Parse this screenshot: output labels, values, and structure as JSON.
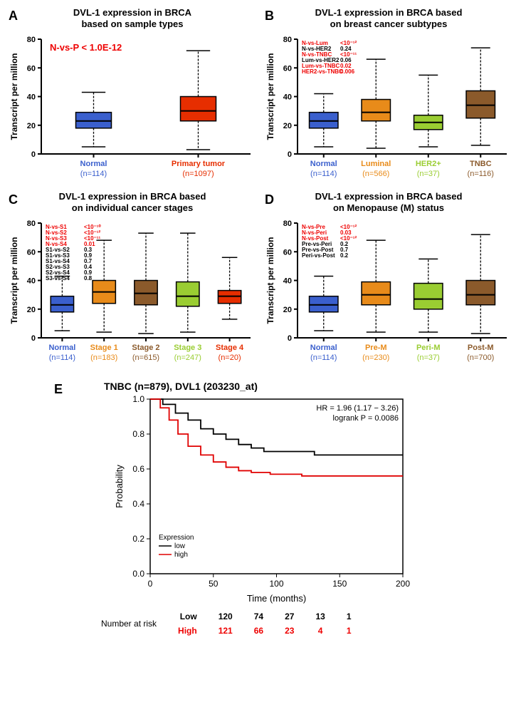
{
  "panelA": {
    "label": "A",
    "title_l1": "DVL-1 expression in BRCA",
    "title_l2": "based on sample types",
    "ylabel": "Transcript per million",
    "yticks": [
      0,
      20,
      40,
      60,
      80
    ],
    "ylim": [
      0,
      80
    ],
    "pval_text": "N-vs-P < 1.0E-12",
    "categories": [
      {
        "name": "Normal",
        "n": "(n=114)",
        "color": "#3a5fcd",
        "q1": 18,
        "median": 23,
        "q3": 29,
        "wlo": 5,
        "whi": 43
      },
      {
        "name": "Primary tumor",
        "n": "(n=1097)",
        "color": "#e62e00",
        "q1": 23,
        "median": 30,
        "q3": 40,
        "wlo": 3,
        "whi": 72
      }
    ]
  },
  "panelB": {
    "label": "B",
    "title_l1": "DVL-1 expression in BRCA based",
    "title_l2": "on breast cancer subtypes",
    "ylabel": "Transcript per million",
    "yticks": [
      0,
      20,
      40,
      60,
      80
    ],
    "ylim": [
      0,
      80
    ],
    "pvals": [
      {
        "t": "N-vs-Lum",
        "v": "<10⁻¹²",
        "red": true
      },
      {
        "t": "N-vs-HER2",
        "v": "0.24",
        "red": false
      },
      {
        "t": "N-vs-TNBC",
        "v": "<10⁻¹¹",
        "red": true
      },
      {
        "t": "Lum-vs-HER2",
        "v": "0.06",
        "red": false
      },
      {
        "t": "Lum-vs-TNBC",
        "v": "0.02",
        "red": true
      },
      {
        "t": "HER2-vs-TNBC",
        "v": "0.006",
        "red": true
      }
    ],
    "categories": [
      {
        "name": "Normal",
        "n": "(n=114)",
        "color": "#3a5fcd",
        "q1": 18,
        "median": 23,
        "q3": 29,
        "wlo": 5,
        "whi": 42
      },
      {
        "name": "Luminal",
        "n": "(n=566)",
        "color": "#e88b1a",
        "q1": 23,
        "median": 29,
        "q3": 38,
        "wlo": 4,
        "whi": 66
      },
      {
        "name": "HER2+",
        "n": "(n=37)",
        "color": "#9acd32",
        "q1": 17,
        "median": 22,
        "q3": 27,
        "wlo": 5,
        "whi": 55
      },
      {
        "name": "TNBC",
        "n": "(n=116)",
        "color": "#8b5a2b",
        "q1": 25,
        "median": 34,
        "q3": 44,
        "wlo": 6,
        "whi": 74
      }
    ]
  },
  "panelC": {
    "label": "C",
    "title_l1": "DVL-1 expression in BRCA based",
    "title_l2": "on individual cancer stages",
    "ylabel": "Transcript per million",
    "yticks": [
      0,
      20,
      40,
      60,
      80
    ],
    "ylim": [
      0,
      80
    ],
    "pvals": [
      {
        "t": "N-vs-S1",
        "v": "<10⁻¹⁰",
        "red": true
      },
      {
        "t": "N-vs-S2",
        "v": "<10⁻¹²",
        "red": true
      },
      {
        "t": "N-vs-S3",
        "v": "<10⁻¹¹",
        "red": true
      },
      {
        "t": "N-vs-S4",
        "v": "0.01",
        "red": true
      },
      {
        "t": "S1-vs-S2",
        "v": "0.3",
        "red": false
      },
      {
        "t": "S1-vs-S3",
        "v": "0.9",
        "red": false
      },
      {
        "t": "S1-vs-S4",
        "v": "0.7",
        "red": false
      },
      {
        "t": "S2-vs-S3",
        "v": "0.4",
        "red": false
      },
      {
        "t": "S2-vs-S4",
        "v": "0.9",
        "red": false
      },
      {
        "t": "S3-vs-S4",
        "v": "0.8",
        "red": false
      }
    ],
    "categories": [
      {
        "name": "Normal",
        "n": "(n=114)",
        "color": "#3a5fcd",
        "q1": 18,
        "median": 23,
        "q3": 29,
        "wlo": 5,
        "whi": 43
      },
      {
        "name": "Stage 1",
        "n": "(n=183)",
        "color": "#e88b1a",
        "q1": 24,
        "median": 32,
        "q3": 40,
        "wlo": 4,
        "whi": 68
      },
      {
        "name": "Stage 2",
        "n": "(n=615)",
        "color": "#8b5a2b",
        "q1": 23,
        "median": 31,
        "q3": 40,
        "wlo": 3,
        "whi": 73
      },
      {
        "name": "Stage 3",
        "n": "(n=247)",
        "color": "#9acd32",
        "q1": 22,
        "median": 29,
        "q3": 39,
        "wlo": 4,
        "whi": 73
      },
      {
        "name": "Stage 4",
        "n": "(n=20)",
        "color": "#e62e00",
        "q1": 24,
        "median": 29,
        "q3": 33,
        "wlo": 13,
        "whi": 56
      }
    ]
  },
  "panelD": {
    "label": "D",
    "title_l1": "DVL-1 expression in BRCA based",
    "title_l2": "on Menopause (M) status",
    "ylabel": "Transcript per million",
    "yticks": [
      0,
      20,
      40,
      60,
      80
    ],
    "ylim": [
      0,
      80
    ],
    "pvals": [
      {
        "t": "N-vs-Pre",
        "v": "<10⁻¹²",
        "red": true
      },
      {
        "t": "N-vs-Peri",
        "v": "0.03",
        "red": true
      },
      {
        "t": "N-vs-Post",
        "v": "<10⁻¹²",
        "red": true
      },
      {
        "t": "Pre-vs-Peri",
        "v": "0.2",
        "red": false
      },
      {
        "t": "Pre-vs-Post",
        "v": "0.7",
        "red": false
      },
      {
        "t": "Peri-vs-Post",
        "v": "0.2",
        "red": false
      }
    ],
    "categories": [
      {
        "name": "Normal",
        "n": "(n=114)",
        "color": "#3a5fcd",
        "q1": 18,
        "median": 23,
        "q3": 29,
        "wlo": 5,
        "whi": 43
      },
      {
        "name": "Pre-M",
        "n": "(n=230)",
        "color": "#e88b1a",
        "q1": 23,
        "median": 30,
        "q3": 39,
        "wlo": 4,
        "whi": 68
      },
      {
        "name": "Peri-M",
        "n": "(n=37)",
        "color": "#9acd32",
        "q1": 20,
        "median": 27,
        "q3": 38,
        "wlo": 4,
        "whi": 55
      },
      {
        "name": "Post-M",
        "n": "(n=700)",
        "color": "#8b5a2b",
        "q1": 23,
        "median": 30,
        "q3": 40,
        "wlo": 3,
        "whi": 72
      }
    ]
  },
  "panelE": {
    "label": "E",
    "title": "TNBC (n=879), DVL1 (203230_at)",
    "xlabel": "Time (months)",
    "ylabel": "Probability",
    "xlim": [
      0,
      200
    ],
    "xticks": [
      0,
      50,
      100,
      150,
      200
    ],
    "ylim": [
      0,
      1
    ],
    "yticks": [
      0,
      0.2,
      0.4,
      0.6,
      0.8,
      1.0
    ],
    "hr_text": "HR = 1.96 (1.17 − 3.26)",
    "logrank_text": "logrank P = 0.0086",
    "legend_title": "Expression",
    "legend": [
      {
        "label": "low",
        "color": "#000000"
      },
      {
        "label": "high",
        "color": "#e00000"
      }
    ],
    "low_curve": [
      [
        0,
        1.0
      ],
      [
        10,
        0.97
      ],
      [
        20,
        0.92
      ],
      [
        30,
        0.88
      ],
      [
        40,
        0.83
      ],
      [
        50,
        0.8
      ],
      [
        60,
        0.77
      ],
      [
        70,
        0.74
      ],
      [
        80,
        0.72
      ],
      [
        90,
        0.7
      ],
      [
        110,
        0.7
      ],
      [
        130,
        0.68
      ],
      [
        200,
        0.68
      ]
    ],
    "high_curve": [
      [
        0,
        1.0
      ],
      [
        8,
        0.95
      ],
      [
        15,
        0.88
      ],
      [
        22,
        0.8
      ],
      [
        30,
        0.73
      ],
      [
        40,
        0.68
      ],
      [
        50,
        0.64
      ],
      [
        60,
        0.61
      ],
      [
        70,
        0.59
      ],
      [
        80,
        0.58
      ],
      [
        95,
        0.57
      ],
      [
        120,
        0.56
      ],
      [
        200,
        0.56
      ]
    ],
    "risk_header": "Number at risk",
    "risk_low_label": "Low",
    "risk_high_label": "High",
    "risk_low": [
      120,
      74,
      27,
      13,
      1
    ],
    "risk_high": [
      121,
      66,
      23,
      4,
      1
    ]
  }
}
